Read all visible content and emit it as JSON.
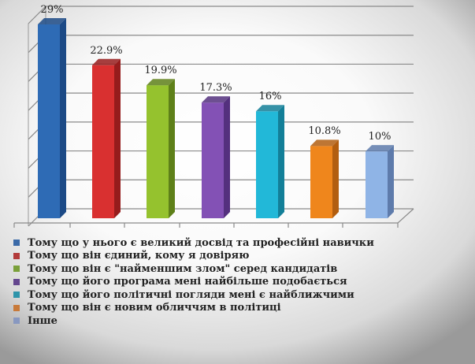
{
  "chart_data": {
    "type": "bar",
    "title": "",
    "xlabel": "",
    "ylabel": "",
    "ylim": [
      0,
      30
    ],
    "grid": true,
    "legend_position": "bottom",
    "three_d": true,
    "categories": [
      "Тому що у нього є великий досвід та професійні навички",
      "Тому що він єдиний, кому я довіряю",
      "Тому що він є \"найменшим злом\" серед кандидатів",
      "Тому що його програма мені найбільше подобається",
      "Тому що його політичні погляди мені є найближчими",
      "Тому що він є новим обличчям в політиці",
      "Інше"
    ],
    "values": [
      29,
      22.9,
      19.9,
      17.3,
      16,
      10.8,
      10
    ],
    "labels": [
      "29%",
      "22.9%",
      "19.9%",
      "17.3%",
      "16%",
      "10.8%",
      "10%"
    ],
    "colors": [
      "#2e6bb5",
      "#d93030",
      "#95c22e",
      "#8351b5",
      "#22b8d8",
      "#ef861c",
      "#8fb4e6"
    ],
    "side_colors": [
      "#1c4a86",
      "#961c1c",
      "#5e8019",
      "#54307e",
      "#137f98",
      "#b25e10",
      "#5e7bab"
    ]
  },
  "legend": {
    "items": [
      {
        "label": "Тому що у нього є великий досвід та професійні навички",
        "color": "#3b6aa8"
      },
      {
        "label": "Тому що він єдиний, кому я довіряю",
        "color": "#b23a3a"
      },
      {
        "label": "Тому що він є \"найменшим злом\" серед кандидатів",
        "color": "#7aa03a"
      },
      {
        "label": "Тому що його програма мені найбільше подобається",
        "color": "#64468e"
      },
      {
        "label": "Тому що його політичні погляди мені є найближчими",
        "color": "#2e94aa"
      },
      {
        "label": "Тому що він є новим обличчям в політиці",
        "color": "#c87a3a"
      },
      {
        "label": "Інше",
        "color": "#8898c0"
      }
    ]
  }
}
